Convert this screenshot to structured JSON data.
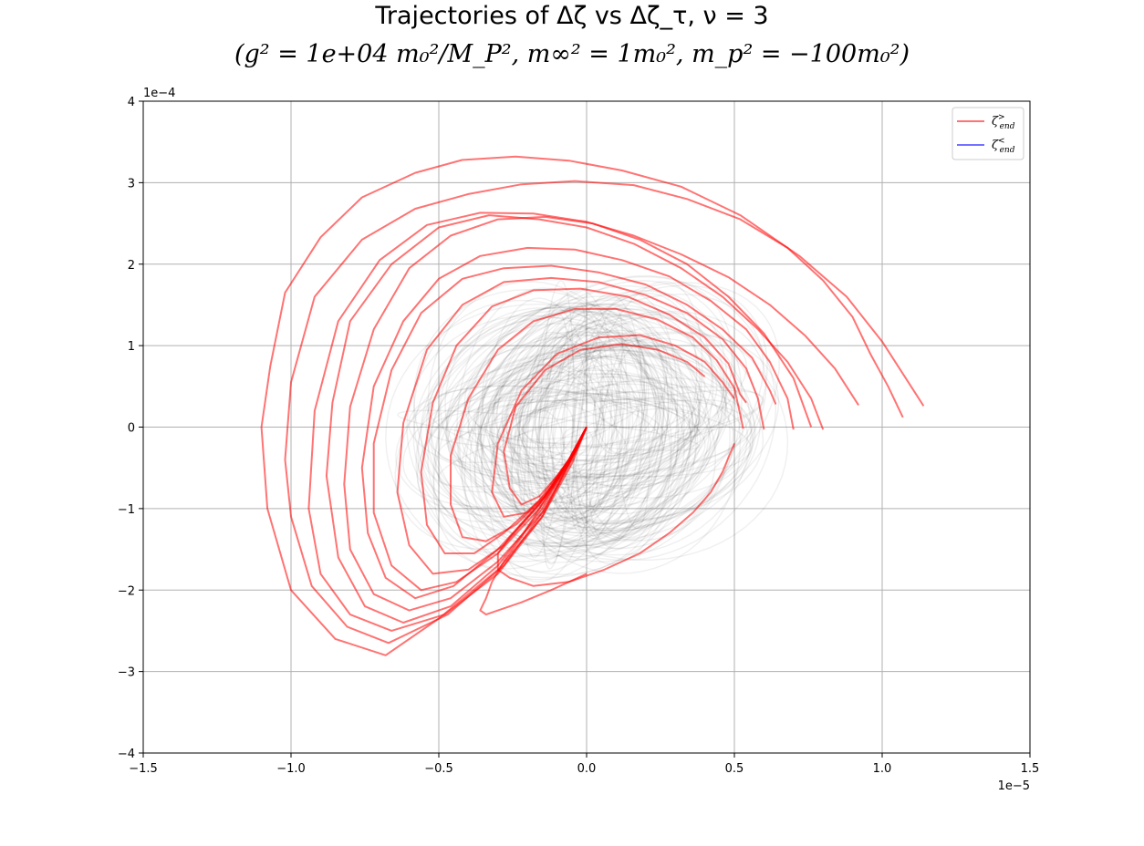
{
  "title_line1": "Trajectories of Δζ vs Δζ_τ, ν = 3",
  "title_line2": "(g² = 1e+04 m₀²/M_P², m∞² = 1m₀², m_p² = −100m₀²)",
  "chart_data": {
    "type": "line",
    "title": "Trajectories of Δζ vs Δζ_τ, ν = 3",
    "subtitle": "(g² = 1e+04 m₀²/M_P², m∞² = 1m₀², m_p² = −100m₀²)",
    "xlabel": "",
    "ylabel": "",
    "x_offset_label": "1e−5",
    "y_offset_label": "1e−4",
    "xlim": [
      -1.5,
      1.5
    ],
    "ylim": [
      -4,
      4
    ],
    "xticks": [
      -1.5,
      -1.0,
      -0.5,
      0.0,
      0.5,
      1.0,
      1.5
    ],
    "yticks": [
      -4,
      -3,
      -2,
      -1,
      0,
      1,
      2,
      3,
      4
    ],
    "xtick_labels": [
      "−1.5",
      "−1.0",
      "−0.5",
      "0.0",
      "0.5",
      "1.0",
      "1.5"
    ],
    "ytick_labels": [
      "−4",
      "−3",
      "−2",
      "−1",
      "0",
      "1",
      "2",
      "3",
      "4"
    ],
    "grid": true,
    "legend_position": "top-right",
    "legend": [
      {
        "label": "ζ>end",
        "color": "#ff0000"
      },
      {
        "label": "ζ<end",
        "color": "#0000ff"
      }
    ],
    "colors": {
      "ended_above": "#ff0000",
      "ended_below": "#0000ff",
      "background_trajectories": "#000000"
    },
    "series": [
      {
        "group": "ended_above",
        "x": [
          0.0,
          -0.05,
          -0.15,
          -0.3,
          -0.5,
          -0.68,
          -0.85,
          -1.0,
          -1.08,
          -1.1,
          -1.07,
          -1.02,
          -0.9,
          -0.76,
          -0.58,
          -0.42,
          -0.24,
          -0.06,
          0.12,
          0.32,
          0.52,
          0.72,
          0.88,
          1.0,
          1.08,
          1.14
        ],
        "y": [
          0.0,
          -0.45,
          -1.1,
          -1.75,
          -2.35,
          -2.8,
          -2.6,
          -2.0,
          -1.0,
          0.0,
          0.75,
          1.65,
          2.33,
          2.82,
          3.12,
          3.28,
          3.32,
          3.27,
          3.15,
          2.95,
          2.6,
          2.1,
          1.6,
          1.05,
          0.6,
          0.26
        ]
      },
      {
        "group": "ended_above",
        "x": [
          0.0,
          -0.05,
          -0.14,
          -0.28,
          -0.47,
          -0.67,
          -0.81,
          -0.93,
          -1.0,
          -1.02,
          -1.0,
          -0.92,
          -0.76,
          -0.58,
          -0.4,
          -0.22,
          -0.04,
          0.16,
          0.34,
          0.52,
          0.68,
          0.8,
          0.9,
          0.96,
          1.02,
          1.07
        ],
        "y": [
          0.0,
          -0.4,
          -1.0,
          -1.7,
          -2.3,
          -2.65,
          -2.45,
          -1.95,
          -1.1,
          -0.4,
          0.55,
          1.6,
          2.3,
          2.68,
          2.86,
          2.98,
          3.02,
          2.97,
          2.8,
          2.55,
          2.2,
          1.8,
          1.35,
          0.9,
          0.5,
          0.12
        ]
      },
      {
        "group": "ended_above",
        "x": [
          0.0,
          -0.06,
          -0.15,
          -0.3,
          -0.48,
          -0.66,
          -0.8,
          -0.9,
          -0.94,
          -0.92,
          -0.84,
          -0.7,
          -0.54,
          -0.36,
          -0.18,
          0.0,
          0.16,
          0.32,
          0.48,
          0.62,
          0.74,
          0.84,
          0.92
        ],
        "y": [
          0.0,
          -0.45,
          -1.1,
          -1.8,
          -2.3,
          -2.5,
          -2.3,
          -1.8,
          -1.0,
          0.2,
          1.3,
          2.05,
          2.48,
          2.63,
          2.62,
          2.52,
          2.35,
          2.12,
          1.84,
          1.5,
          1.12,
          0.72,
          0.27
        ]
      },
      {
        "group": "ended_above",
        "x": [
          0.0,
          -0.06,
          -0.15,
          -0.3,
          -0.46,
          -0.62,
          -0.75,
          -0.84,
          -0.88,
          -0.86,
          -0.8,
          -0.66,
          -0.5,
          -0.33,
          -0.16,
          0.0,
          0.16,
          0.32,
          0.46,
          0.58,
          0.68,
          0.76,
          0.8
        ],
        "y": [
          0.0,
          -0.4,
          -1.0,
          -1.7,
          -2.2,
          -2.4,
          -2.2,
          -1.6,
          -0.6,
          0.3,
          1.3,
          2.0,
          2.45,
          2.6,
          2.55,
          2.45,
          2.25,
          1.95,
          1.6,
          1.2,
          0.8,
          0.35,
          -0.03
        ]
      },
      {
        "group": "ended_above",
        "x": [
          0.0,
          -0.06,
          -0.15,
          -0.3,
          -0.46,
          -0.6,
          -0.72,
          -0.8,
          -0.82,
          -0.8,
          -0.72,
          -0.6,
          -0.46,
          -0.3,
          -0.14,
          0.02,
          0.18,
          0.34,
          0.48,
          0.6,
          0.7,
          0.76
        ],
        "y": [
          0.0,
          -0.45,
          -1.05,
          -1.65,
          -2.1,
          -2.25,
          -2.05,
          -1.5,
          -0.7,
          0.25,
          1.2,
          1.95,
          2.35,
          2.55,
          2.58,
          2.5,
          2.3,
          2.0,
          1.6,
          1.15,
          0.6,
          0.0
        ]
      },
      {
        "group": "ended_above",
        "x": [
          0.0,
          -0.06,
          -0.16,
          -0.3,
          -0.45,
          -0.58,
          -0.68,
          -0.74,
          -0.76,
          -0.72,
          -0.62,
          -0.5,
          -0.36,
          -0.2,
          -0.04,
          0.12,
          0.28,
          0.42,
          0.54,
          0.62,
          0.68,
          0.7
        ],
        "y": [
          0.0,
          -0.4,
          -0.95,
          -1.5,
          -1.95,
          -2.1,
          -1.85,
          -1.3,
          -0.5,
          0.5,
          1.3,
          1.82,
          2.1,
          2.2,
          2.18,
          2.05,
          1.85,
          1.55,
          1.2,
          0.8,
          0.35,
          -0.03
        ]
      },
      {
        "group": "ended_above",
        "x": [
          0.0,
          -0.06,
          -0.16,
          -0.3,
          -0.44,
          -0.56,
          -0.66,
          -0.72,
          -0.72,
          -0.66,
          -0.56,
          -0.42,
          -0.28,
          -0.12,
          0.04,
          0.2,
          0.34,
          0.46,
          0.56,
          0.62,
          0.64
        ],
        "y": [
          0.0,
          -0.45,
          -1.0,
          -1.55,
          -1.9,
          -2.0,
          -1.7,
          -1.05,
          -0.2,
          0.7,
          1.4,
          1.82,
          1.95,
          1.98,
          1.9,
          1.75,
          1.5,
          1.2,
          0.85,
          0.45,
          0.28
        ]
      },
      {
        "group": "ended_above",
        "x": [
          0.0,
          -0.06,
          -0.16,
          -0.28,
          -0.4,
          -0.52,
          -0.6,
          -0.64,
          -0.62,
          -0.54,
          -0.42,
          -0.28,
          -0.12,
          0.04,
          0.2,
          0.34,
          0.46,
          0.54,
          0.58,
          0.6
        ],
        "y": [
          0.0,
          -0.4,
          -0.95,
          -1.45,
          -1.75,
          -1.8,
          -1.45,
          -0.8,
          0.05,
          0.95,
          1.5,
          1.78,
          1.83,
          1.78,
          1.62,
          1.4,
          1.08,
          0.72,
          0.35,
          -0.03
        ]
      },
      {
        "group": "ended_above",
        "x": [
          0.0,
          -0.06,
          -0.16,
          -0.28,
          -0.38,
          -0.48,
          -0.54,
          -0.56,
          -0.52,
          -0.44,
          -0.32,
          -0.18,
          -0.02,
          0.14,
          0.28,
          0.4,
          0.48,
          0.52,
          0.54
        ],
        "y": [
          0.0,
          -0.4,
          -0.9,
          -1.3,
          -1.55,
          -1.55,
          -1.2,
          -0.55,
          0.3,
          1.0,
          1.48,
          1.68,
          1.7,
          1.6,
          1.38,
          1.1,
          0.78,
          0.4,
          0.3
        ]
      },
      {
        "group": "ended_above",
        "x": [
          0.0,
          -0.06,
          -0.14,
          -0.24,
          -0.34,
          -0.42,
          -0.46,
          -0.46,
          -0.4,
          -0.3,
          -0.18,
          -0.04,
          0.1,
          0.24,
          0.36,
          0.44,
          0.5,
          0.52,
          0.53
        ],
        "y": [
          0.0,
          -0.4,
          -0.85,
          -1.2,
          -1.4,
          -1.35,
          -0.95,
          -0.35,
          0.35,
          0.95,
          1.3,
          1.45,
          1.45,
          1.32,
          1.1,
          0.82,
          0.48,
          0.15,
          -0.02
        ]
      },
      {
        "group": "ended_above",
        "x": [
          0.0,
          -0.05,
          -0.12,
          -0.2,
          -0.28,
          -0.32,
          -0.3,
          -0.22,
          -0.1,
          0.04,
          0.18,
          0.3,
          0.4,
          0.46,
          0.5
        ],
        "y": [
          0.0,
          -0.35,
          -0.75,
          -1.05,
          -1.1,
          -0.8,
          -0.2,
          0.45,
          0.9,
          1.1,
          1.13,
          1.0,
          0.8,
          0.55,
          0.35
        ]
      },
      {
        "group": "ended_above",
        "x": [
          0.0,
          -0.04,
          -0.1,
          -0.16,
          -0.22,
          -0.26,
          -0.28,
          -0.24,
          -0.14,
          -0.02,
          0.12,
          0.24,
          0.34,
          0.4
        ],
        "y": [
          0.0,
          -0.3,
          -0.6,
          -0.85,
          -0.95,
          -0.75,
          -0.3,
          0.25,
          0.7,
          0.95,
          1.02,
          0.95,
          0.8,
          0.62
        ]
      },
      {
        "group": "ended_above",
        "x": [
          0.0,
          -0.03,
          -0.08,
          -0.14,
          -0.2,
          -0.26,
          -0.3,
          -0.3,
          -0.26,
          -0.18,
          -0.06,
          0.06,
          0.18,
          0.28,
          0.36,
          0.42,
          0.46,
          0.5
        ],
        "y": [
          0.0,
          -0.25,
          -0.55,
          -0.85,
          -1.1,
          -1.35,
          -1.55,
          -1.75,
          -1.85,
          -1.95,
          -1.9,
          -1.75,
          -1.55,
          -1.3,
          -1.05,
          -0.8,
          -0.55,
          -0.2
        ]
      },
      {
        "group": "ended_above",
        "x": [
          0.0,
          -0.04,
          -0.1,
          -0.16,
          -0.22,
          -0.28,
          -0.32,
          -0.34,
          -0.36,
          -0.34,
          -0.3,
          -0.22,
          -0.12,
          0.0
        ],
        "y": [
          0.0,
          -0.3,
          -0.65,
          -1.0,
          -1.35,
          -1.65,
          -1.9,
          -2.1,
          -2.25,
          -2.3,
          -2.25,
          -2.15,
          -2.0,
          -1.8
        ]
      }
    ]
  }
}
